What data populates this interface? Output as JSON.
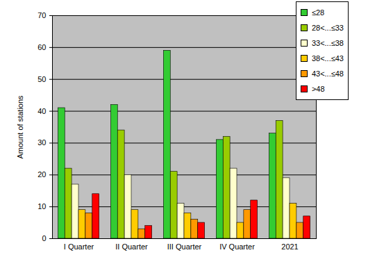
{
  "chart_data": {
    "type": "bar",
    "categories": [
      "I Quarter",
      "II Quarter",
      "III Quarter",
      "IV Quarter",
      "2021"
    ],
    "series": [
      {
        "name": "≤28",
        "color": "#33cc33",
        "values": [
          41,
          42,
          59,
          31,
          33
        ]
      },
      {
        "name": "28<...≤33",
        "color": "#99cc00",
        "values": [
          22,
          34,
          21,
          32,
          37
        ]
      },
      {
        "name": "33<...≤38",
        "color": "#ffffcc",
        "values": [
          17,
          20,
          11,
          22,
          19
        ]
      },
      {
        "name": "38<...≤43",
        "color": "#ffcc00",
        "values": [
          9,
          9,
          8,
          5,
          11
        ]
      },
      {
        "name": "43<...≤48",
        "color": "#ff9900",
        "values": [
          8,
          3,
          6,
          9,
          5
        ]
      },
      {
        "name": ">48",
        "color": "#ff0000",
        "values": [
          14,
          4,
          5,
          12,
          7
        ]
      }
    ],
    "y_label": "Amount of stations",
    "ylim": [
      0,
      70
    ],
    "yticks": [
      0,
      10,
      20,
      30,
      40,
      50,
      60,
      70
    ],
    "grid": true,
    "legend": "top-right"
  }
}
